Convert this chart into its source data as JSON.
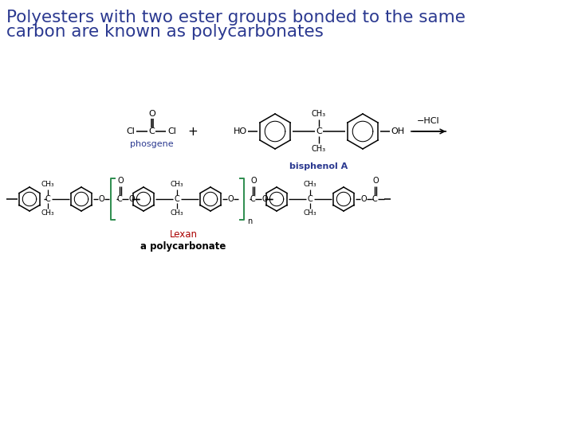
{
  "title_line1": "Polyesters with two ester groups bonded to the same",
  "title_line2": "carbon are known as polycarbonates",
  "title_color": "#2B3990",
  "title_fontsize": 15.5,
  "bg_color": "#FFFFFF",
  "black": "#000000",
  "blue": "#2B3990",
  "green": "#2D8C4E",
  "red": "#AA0000",
  "phosgene_label": "phosgene",
  "bisphenolA_label": "bisphenol A",
  "lexan_label": "Lexan",
  "polycarbonate_label": "a polycarbonate",
  "hcl_label": "−HCl",
  "fig_w": 7.2,
  "fig_h": 5.4,
  "dpi": 100
}
